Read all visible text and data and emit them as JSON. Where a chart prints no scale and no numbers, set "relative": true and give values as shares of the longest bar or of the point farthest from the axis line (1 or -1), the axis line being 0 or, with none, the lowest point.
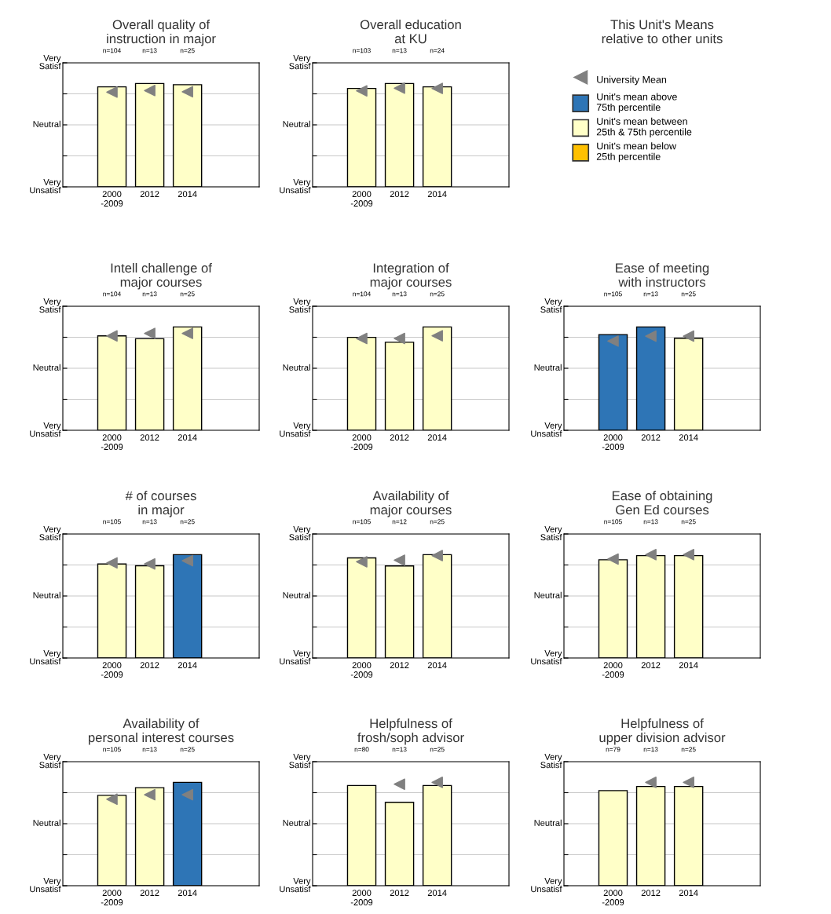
{
  "chart_data": [
    {
      "type": "bar",
      "relative": true,
      "title": "Overall quality of\ninstruction in major",
      "categories": [
        "2000\n-2009",
        "2012",
        "2014"
      ],
      "grid": "y",
      "marker": "triangle",
      "series": [
        {
          "type": "bar",
          "values": [
            0.967,
            1,
            0.988
          ],
          "colors": [
            "#ffffc8",
            "#ffffc8",
            "#ffffc8"
          ]
        },
        {
          "type": "scatter",
          "color": "#808080",
          "values": [
            0.917,
            0.932,
            0.92
          ]
        }
      ],
      "annotations": [
        "n=104",
        "n=13",
        "n=25",
        "Very\nSatisf",
        "Neutral",
        "Very\nUnsatisf"
      ]
    },
    {
      "type": "bar",
      "relative": true,
      "title": "Overall education\nat KU",
      "categories": [
        "2000\n-2009",
        "2012",
        "2014"
      ],
      "grid": "y",
      "marker": "triangle",
      "series": [
        {
          "type": "bar",
          "values": [
            0.952,
            1,
            0.967
          ],
          "colors": [
            "#ffffc8",
            "#ffffc8",
            "#ffffc8"
          ]
        },
        {
          "type": "scatter",
          "color": "#808080",
          "values": [
            0.929,
            0.955,
            0.952
          ]
        }
      ],
      "annotations": [
        "n=103",
        "n=13",
        "n=24",
        "Very\nSatisf",
        "Neutral",
        "Very\nUnsatisf"
      ]
    },
    {
      "type": "other",
      "title": "This Unit's Means\nrelative to other units",
      "series": [
        {
          "type": "scatter",
          "name": "University Mean",
          "color": "#808080"
        },
        {
          "type": "bar",
          "name": "Unit's mean above\n75th percentile",
          "color": "#2e75b6"
        },
        {
          "type": "bar",
          "name": "Unit's mean between\n25th & 75th percentile",
          "color": "#ffffc8"
        },
        {
          "type": "bar",
          "name": "Unit's mean below\n25th percentile",
          "color": "#ffc000"
        }
      ]
    },
    {
      "type": "bar",
      "relative": true,
      "title": "Intell challenge of\nmajor courses",
      "categories": [
        "2000\n-2009",
        "2012",
        "2014"
      ],
      "grid": "y",
      "marker": "triangle",
      "series": [
        {
          "type": "bar",
          "values": [
            0.913,
            0.886,
            1
          ],
          "colors": [
            "#ffffc8",
            "#ffffc8",
            "#ffffc8"
          ]
        },
        {
          "type": "scatter",
          "color": "#808080",
          "values": [
            0.913,
            0.937,
            0.937
          ]
        }
      ],
      "annotations": [
        "n=104",
        "n=13",
        "n=25",
        "Very\nSatisf",
        "Neutral",
        "Very\nUnsatisf"
      ]
    },
    {
      "type": "bar",
      "relative": true,
      "title": "Integration of\nmajor courses",
      "categories": [
        "2000\n-2009",
        "2012",
        "2014"
      ],
      "grid": "y",
      "marker": "triangle",
      "series": [
        {
          "type": "bar",
          "values": [
            0.899,
            0.852,
            1
          ],
          "colors": [
            "#ffffc8",
            "#ffffc8",
            "#ffffc8"
          ]
        },
        {
          "type": "scatter",
          "color": "#808080",
          "values": [
            0.888,
            0.888,
            0.914
          ]
        }
      ],
      "annotations": [
        "n=104",
        "n=13",
        "n=25",
        "Very\nSatisf",
        "Neutral",
        "Very\nUnsatisf"
      ]
    },
    {
      "type": "bar",
      "relative": true,
      "title": "Ease of meeting\nwith instructors",
      "categories": [
        "2000\n-2009",
        "2012",
        "2014"
      ],
      "grid": "y",
      "marker": "triangle",
      "series": [
        {
          "type": "bar",
          "values": [
            0.926,
            1,
            0.891
          ],
          "colors": [
            "#2e75b6",
            "#2e75b6",
            "#ffffc8"
          ]
        },
        {
          "type": "scatter",
          "color": "#808080",
          "values": [
            0.863,
            0.911,
            0.911
          ]
        }
      ],
      "annotations": [
        "n=105",
        "n=13",
        "n=25",
        "Very\nSatisf",
        "Neutral",
        "Very\nUnsatisf"
      ]
    },
    {
      "type": "bar",
      "relative": true,
      "title": "# of courses\nin major",
      "categories": [
        "2000\n-2009",
        "2012",
        "2014"
      ],
      "grid": "y",
      "marker": "triangle",
      "series": [
        {
          "type": "bar",
          "values": [
            0.91,
            0.892,
            1
          ],
          "colors": [
            "#ffffc8",
            "#ffffc8",
            "#2e75b6"
          ]
        },
        {
          "type": "scatter",
          "color": "#808080",
          "values": [
            0.92,
            0.91,
            0.941
          ]
        }
      ],
      "annotations": [
        "n=105",
        "n=13",
        "n=25",
        "Very\nSatisf",
        "Neutral",
        "Very\nUnsatisf"
      ]
    },
    {
      "type": "bar",
      "relative": true,
      "title": "Availability of\nmajor courses",
      "categories": [
        "2000\n-2009",
        "2012",
        "2014"
      ],
      "grid": "y",
      "marker": "triangle",
      "series": [
        {
          "type": "bar",
          "values": [
            0.968,
            0.89,
            1
          ],
          "colors": [
            "#ffffc8",
            "#ffffc8",
            "#ffffc8"
          ]
        },
        {
          "type": "scatter",
          "color": "#808080",
          "values": [
            0.931,
            0.946,
            0.991
          ]
        }
      ],
      "annotations": [
        "n=105",
        "n=12",
        "n=25",
        "Very\nSatisf",
        "Neutral",
        "Very\nUnsatisf"
      ]
    },
    {
      "type": "bar",
      "relative": true,
      "title": "Ease of obtaining\nGen Ed courses",
      "categories": [
        "2000\n-2009",
        "2012",
        "2014"
      ],
      "grid": "y",
      "marker": "triangle",
      "series": [
        {
          "type": "bar",
          "values": [
            0.95,
            0.99,
            0.99
          ],
          "colors": [
            "#ffffc8",
            "#ffffc8",
            "#ffffc8"
          ]
        },
        {
          "type": "scatter",
          "color": "#808080",
          "values": [
            0.957,
            1,
            1
          ]
        }
      ],
      "annotations": [
        "n=105",
        "n=13",
        "n=25",
        "Very\nSatisf",
        "Neutral",
        "Very\nUnsatisf"
      ]
    },
    {
      "type": "bar",
      "relative": true,
      "title": "Availability of\npersonal interest courses",
      "categories": [
        "2000\n-2009",
        "2012",
        "2014"
      ],
      "grid": "y",
      "marker": "triangle",
      "series": [
        {
          "type": "bar",
          "values": [
            0.874,
            0.948,
            1
          ],
          "colors": [
            "#ffffc8",
            "#ffffc8",
            "#2e75b6"
          ]
        },
        {
          "type": "scatter",
          "color": "#808080",
          "values": [
            0.837,
            0.88,
            0.88
          ]
        }
      ],
      "annotations": [
        "n=105",
        "n=13",
        "n=25",
        "Very\nSatisf",
        "Neutral",
        "Very\nUnsatisf"
      ]
    },
    {
      "type": "bar",
      "relative": true,
      "title": "Helpfulness of\nfrosh/soph advisor",
      "categories": [
        "2000\n-2009",
        "2012",
        "2014"
      ],
      "grid": "y",
      "marker": "triangle",
      "series": [
        {
          "type": "bar",
          "values": [
            0.969,
            0.807,
            0.969
          ],
          "colors": [
            "#ffffc8",
            "#ffffc8",
            "#ffffc8"
          ]
        },
        {
          "type": "scatter",
          "color": "#808080",
          "values": [
            null,
            0.982,
            1
          ]
        }
      ],
      "annotations": [
        "n=80",
        "n=13",
        "n=25",
        "Very\nSatisf",
        "Neutral",
        "Very\nUnsatisf"
      ]
    },
    {
      "type": "bar",
      "relative": true,
      "title": "Helpfulness of\nupper division advisor",
      "categories": [
        "2000\n-2009",
        "2012",
        "2014"
      ],
      "grid": "y",
      "marker": "triangle",
      "series": [
        {
          "type": "bar",
          "values": [
            0.92,
            0.96,
            0.96
          ],
          "colors": [
            "#ffffc8",
            "#ffffc8",
            "#ffffc8"
          ]
        },
        {
          "type": "scatter",
          "color": "#808080",
          "values": [
            null,
            1,
            1
          ]
        }
      ],
      "annotations": [
        "n=79",
        "n=13",
        "n=25",
        "Very\nSatisf",
        "Neutral",
        "Very\nUnsatisf"
      ]
    }
  ]
}
